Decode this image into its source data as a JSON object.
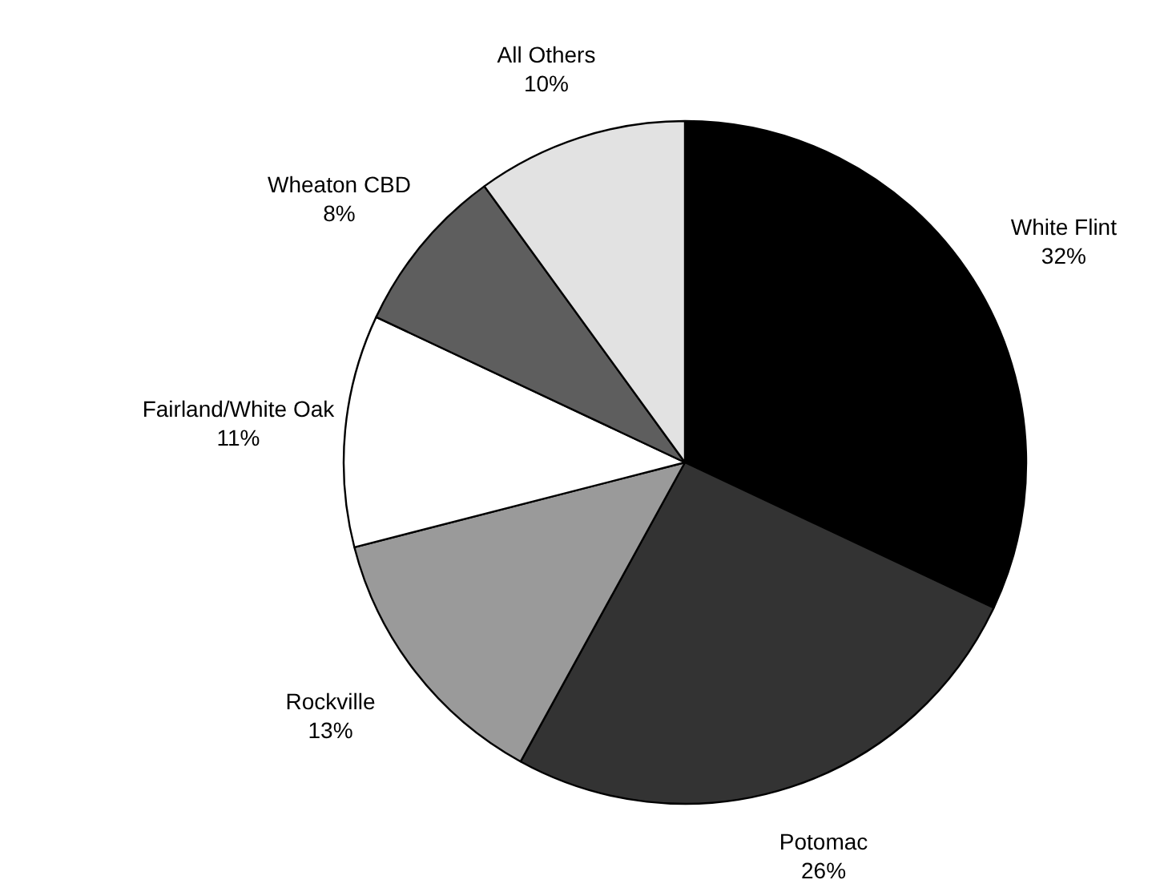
{
  "chart_data": {
    "type": "pie",
    "categories": [
      "White Flint",
      "Potomac",
      "Rockville",
      "Fairland/White Oak",
      "Wheaton CBD",
      "All Others"
    ],
    "values": [
      32,
      26,
      13,
      11,
      8,
      10
    ],
    "value_labels": [
      "32%",
      "26%",
      "13%",
      "11%",
      "8%",
      "10%"
    ],
    "colors": [
      "#000000",
      "#333333",
      "#9a9a9a",
      "#ffffff",
      "#5e5e5e",
      "#e2e2e2"
    ]
  }
}
